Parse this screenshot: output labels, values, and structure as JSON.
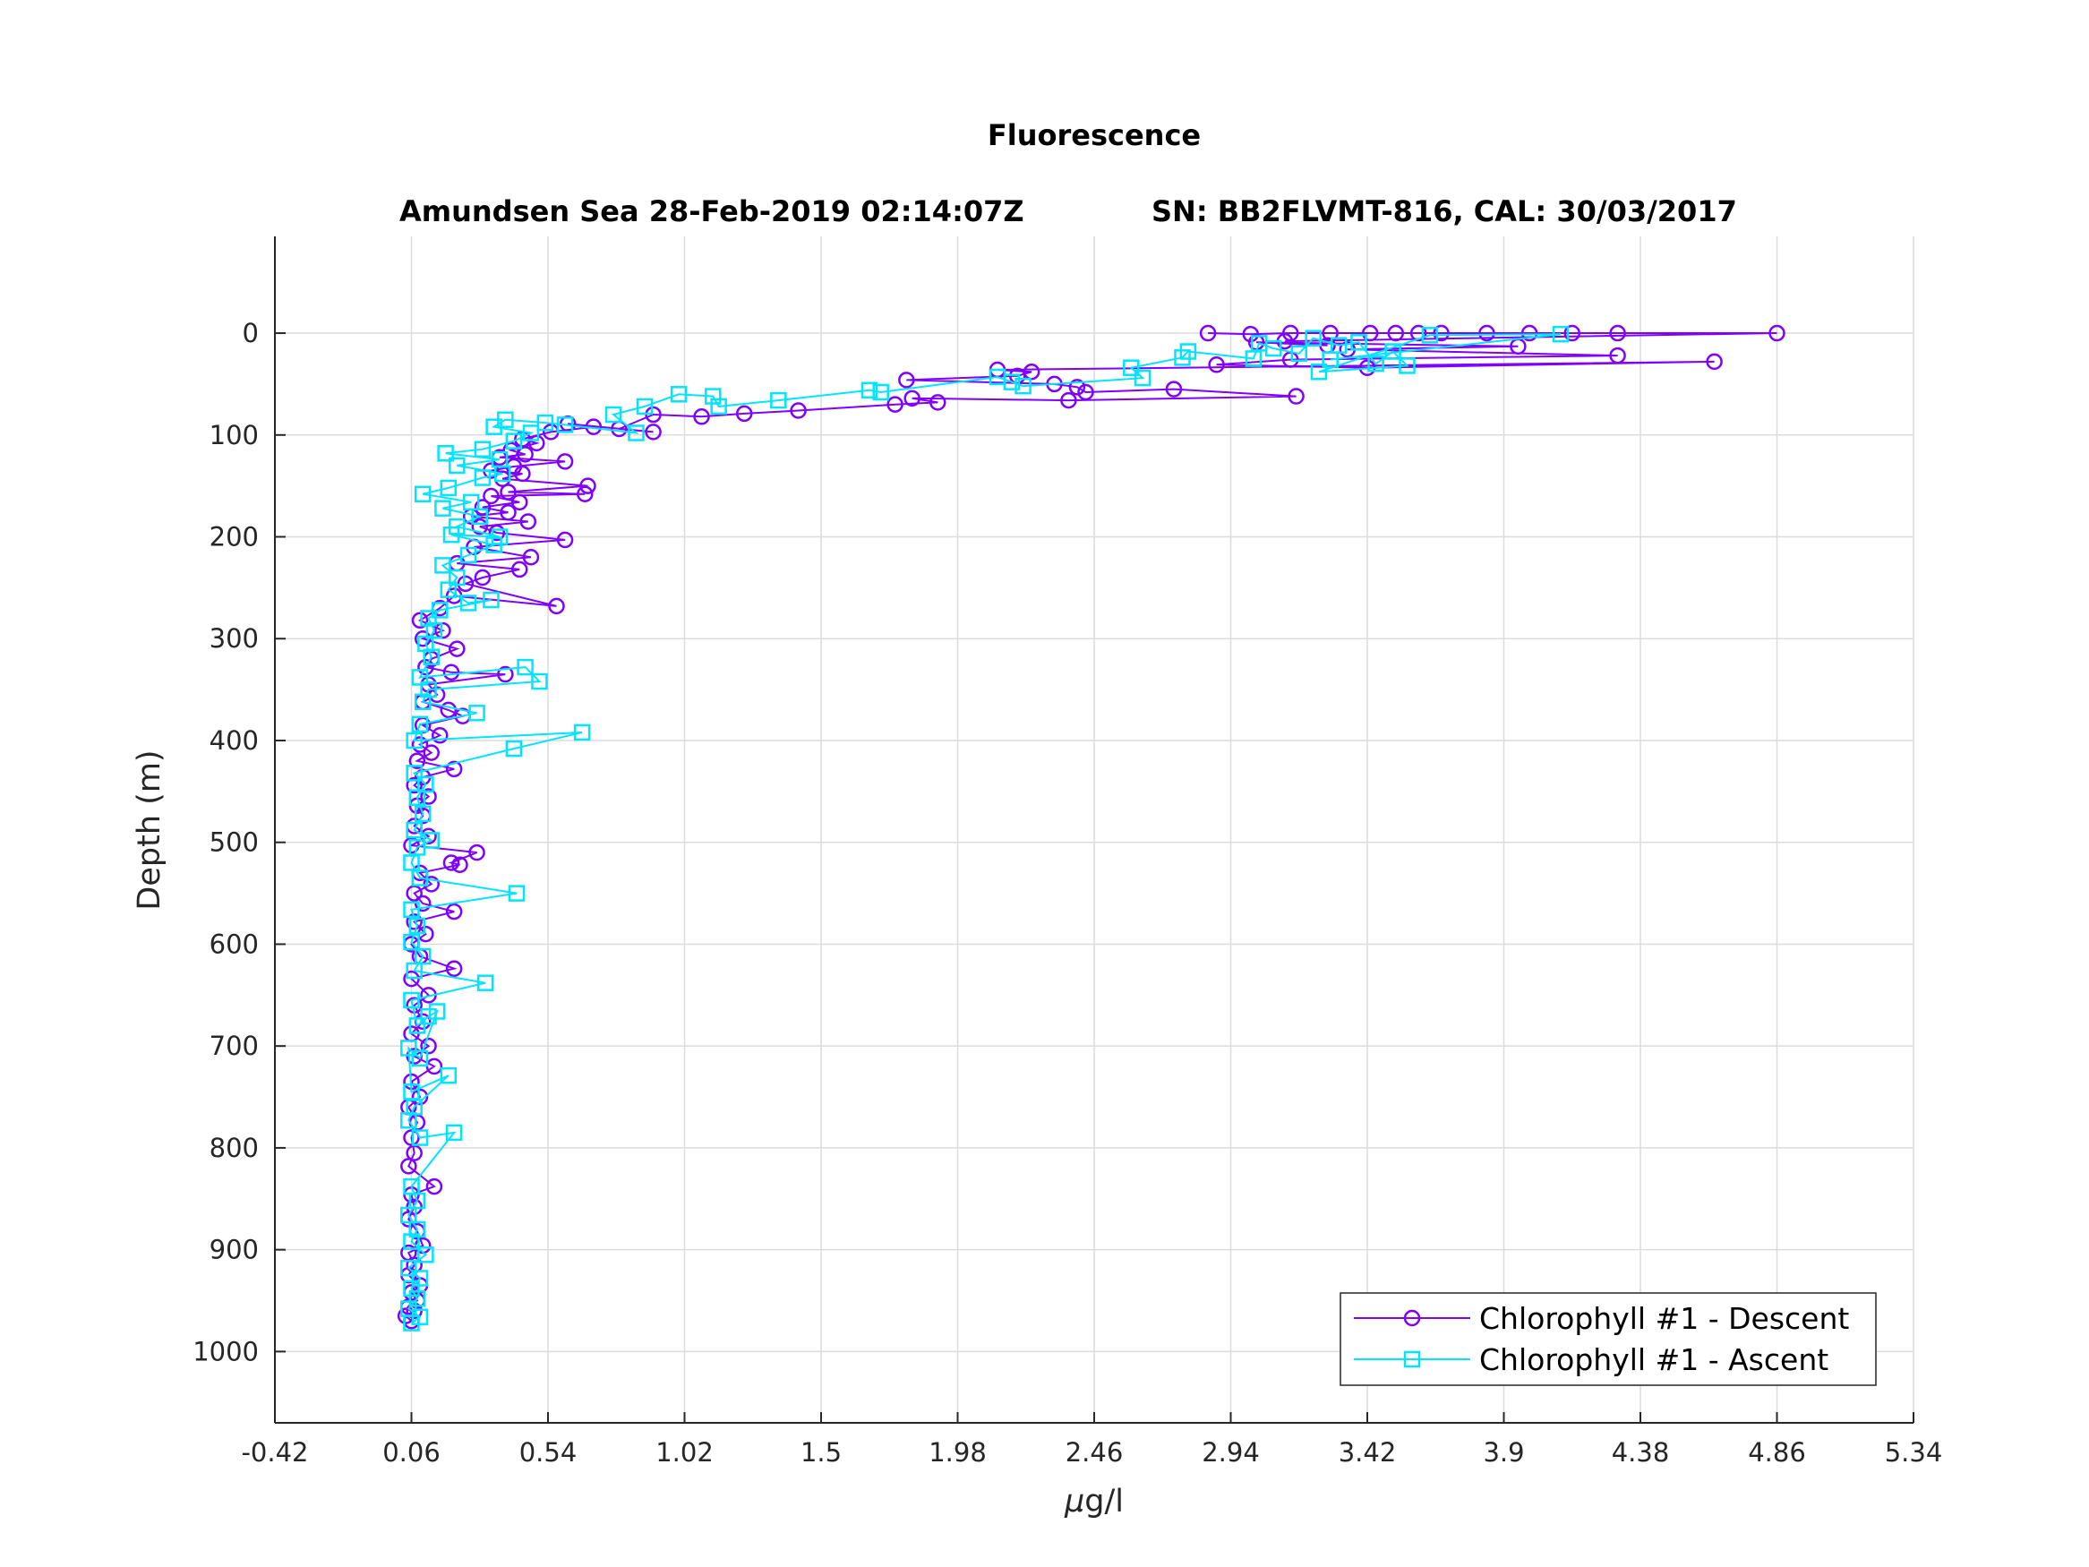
{
  "chart_data": {
    "type": "line",
    "title": "Fluorescence",
    "subtitle_left": "Amundsen Sea 28-Feb-2019 02:14:07Z",
    "subtitle_right": "SN: BB2FLVMT-816, CAL: 30/03/2017",
    "xlabel_mu": "μ",
    "xlabel_rest": "g/l",
    "ylabel": "Depth (m)",
    "xlim": [
      -0.42,
      5.34
    ],
    "ylim": [
      -95,
      1070
    ],
    "y_reversed": true,
    "grid": true,
    "legend_position": "bottom-right",
    "xticks": [
      "-0.42",
      "0.06",
      "0.54",
      "1.02",
      "1.5",
      "1.98",
      "2.46",
      "2.94",
      "3.42",
      "3.9",
      "4.38",
      "4.86",
      "5.34"
    ],
    "yticks": [
      "0",
      "100",
      "200",
      "300",
      "400",
      "500",
      "600",
      "700",
      "800",
      "900",
      "1000"
    ],
    "series": [
      {
        "name": "Chlorophyll #1 - Descent",
        "color": "#7f00ff",
        "marker": "circle",
        "points": [
          [
            2.86,
            0
          ],
          [
            3.01,
            1
          ],
          [
            3.15,
            0
          ],
          [
            3.29,
            0
          ],
          [
            3.43,
            0
          ],
          [
            3.52,
            0
          ],
          [
            3.6,
            0
          ],
          [
            3.68,
            0
          ],
          [
            3.84,
            0
          ],
          [
            3.99,
            0
          ],
          [
            4.14,
            0
          ],
          [
            4.3,
            0
          ],
          [
            4.86,
            0
          ],
          [
            3.13,
            8
          ],
          [
            3.28,
            12
          ],
          [
            3.03,
            9
          ],
          [
            3.95,
            13
          ],
          [
            3.35,
            16
          ],
          [
            4.3,
            22
          ],
          [
            3.15,
            26
          ],
          [
            2.89,
            31
          ],
          [
            3.42,
            34
          ],
          [
            4.64,
            28
          ],
          [
            2.12,
            36
          ],
          [
            2.24,
            38
          ],
          [
            2.19,
            42
          ],
          [
            1.8,
            46
          ],
          [
            2.32,
            50
          ],
          [
            2.4,
            53
          ],
          [
            2.43,
            58
          ],
          [
            2.74,
            55
          ],
          [
            3.17,
            62
          ],
          [
            2.37,
            66
          ],
          [
            1.82,
            64
          ],
          [
            1.91,
            68
          ],
          [
            1.76,
            70
          ],
          [
            1.42,
            76
          ],
          [
            1.23,
            79
          ],
          [
            1.08,
            82
          ],
          [
            0.91,
            80
          ],
          [
            0.79,
            94
          ],
          [
            0.91,
            97
          ],
          [
            0.61,
            89
          ],
          [
            0.7,
            92
          ],
          [
            0.55,
            97
          ],
          [
            0.45,
            104
          ],
          [
            0.5,
            108
          ],
          [
            0.41,
            115
          ],
          [
            0.46,
            119
          ],
          [
            0.37,
            122
          ],
          [
            0.6,
            126
          ],
          [
            0.42,
            131
          ],
          [
            0.34,
            135
          ],
          [
            0.45,
            138
          ],
          [
            0.38,
            143
          ],
          [
            0.68,
            150
          ],
          [
            0.4,
            156
          ],
          [
            0.67,
            158
          ],
          [
            0.34,
            160
          ],
          [
            0.44,
            166
          ],
          [
            0.31,
            171
          ],
          [
            0.4,
            176
          ],
          [
            0.27,
            180
          ],
          [
            0.47,
            185
          ],
          [
            0.3,
            190
          ],
          [
            0.36,
            196
          ],
          [
            0.6,
            203
          ],
          [
            0.28,
            210
          ],
          [
            0.48,
            220
          ],
          [
            0.22,
            226
          ],
          [
            0.44,
            232
          ],
          [
            0.31,
            240
          ],
          [
            0.25,
            246
          ],
          [
            0.57,
            268
          ],
          [
            0.21,
            258
          ],
          [
            0.16,
            270
          ],
          [
            0.09,
            282
          ],
          [
            0.17,
            292
          ],
          [
            0.1,
            300
          ],
          [
            0.22,
            310
          ],
          [
            0.13,
            320
          ],
          [
            0.11,
            328
          ],
          [
            0.2,
            333
          ],
          [
            0.39,
            335
          ],
          [
            0.12,
            345
          ],
          [
            0.15,
            355
          ],
          [
            0.1,
            362
          ],
          [
            0.19,
            370
          ],
          [
            0.24,
            376
          ],
          [
            0.1,
            385
          ],
          [
            0.16,
            395
          ],
          [
            0.09,
            404
          ],
          [
            0.13,
            412
          ],
          [
            0.08,
            420
          ],
          [
            0.21,
            428
          ],
          [
            0.1,
            436
          ],
          [
            0.07,
            444
          ],
          [
            0.12,
            455
          ],
          [
            0.08,
            464
          ],
          [
            0.1,
            474
          ],
          [
            0.07,
            484
          ],
          [
            0.12,
            494
          ],
          [
            0.06,
            503
          ],
          [
            0.29,
            510
          ],
          [
            0.2,
            520
          ],
          [
            0.23,
            522
          ],
          [
            0.09,
            530
          ],
          [
            0.13,
            541
          ],
          [
            0.07,
            550
          ],
          [
            0.1,
            560
          ],
          [
            0.21,
            568
          ],
          [
            0.07,
            578
          ],
          [
            0.11,
            590
          ],
          [
            0.06,
            600
          ],
          [
            0.09,
            612
          ],
          [
            0.21,
            624
          ],
          [
            0.06,
            634
          ],
          [
            0.12,
            650
          ],
          [
            0.07,
            660
          ],
          [
            0.1,
            676
          ],
          [
            0.06,
            688
          ],
          [
            0.12,
            700
          ],
          [
            0.07,
            710
          ],
          [
            0.14,
            720
          ],
          [
            0.06,
            735
          ],
          [
            0.09,
            750
          ],
          [
            0.05,
            760
          ],
          [
            0.08,
            775
          ],
          [
            0.06,
            790
          ],
          [
            0.07,
            805
          ],
          [
            0.05,
            818
          ],
          [
            0.14,
            838
          ],
          [
            0.06,
            846
          ],
          [
            0.07,
            858
          ],
          [
            0.05,
            870
          ],
          [
            0.08,
            882
          ],
          [
            0.1,
            896
          ],
          [
            0.05,
            903
          ],
          [
            0.07,
            915
          ],
          [
            0.05,
            925
          ],
          [
            0.09,
            935
          ],
          [
            0.06,
            942
          ],
          [
            0.08,
            950
          ],
          [
            0.05,
            956
          ],
          [
            0.07,
            960
          ],
          [
            0.04,
            965
          ],
          [
            0.06,
            970
          ]
        ]
      },
      {
        "name": "Chlorophyll #1 - Ascent",
        "color": "#00e5ff",
        "marker": "square",
        "points": [
          [
            0.06,
            972
          ],
          [
            0.09,
            966
          ],
          [
            0.05,
            958
          ],
          [
            0.08,
            948
          ],
          [
            0.06,
            938
          ],
          [
            0.09,
            928
          ],
          [
            0.05,
            918
          ],
          [
            0.11,
            905
          ],
          [
            0.06,
            892
          ],
          [
            0.08,
            880
          ],
          [
            0.05,
            866
          ],
          [
            0.08,
            852
          ],
          [
            0.06,
            838
          ],
          [
            0.21,
            785
          ],
          [
            0.09,
            790
          ],
          [
            0.05,
            773
          ],
          [
            0.07,
            760
          ],
          [
            0.19,
            729
          ],
          [
            0.06,
            745
          ],
          [
            0.05,
            702
          ],
          [
            0.09,
            712
          ],
          [
            0.15,
            666
          ],
          [
            0.12,
            671
          ],
          [
            0.08,
            680
          ],
          [
            0.06,
            655
          ],
          [
            0.32,
            638
          ],
          [
            0.07,
            626
          ],
          [
            0.1,
            612
          ],
          [
            0.06,
            598
          ],
          [
            0.08,
            582
          ],
          [
            0.06,
            566
          ],
          [
            0.43,
            550
          ],
          [
            0.09,
            535
          ],
          [
            0.06,
            520
          ],
          [
            0.08,
            505
          ],
          [
            0.13,
            498
          ],
          [
            0.07,
            488
          ],
          [
            0.1,
            472
          ],
          [
            0.08,
            456
          ],
          [
            0.11,
            443
          ],
          [
            0.07,
            432
          ],
          [
            0.42,
            408
          ],
          [
            0.66,
            392
          ],
          [
            0.07,
            400
          ],
          [
            0.09,
            384
          ],
          [
            0.29,
            373
          ],
          [
            0.1,
            362
          ],
          [
            0.12,
            350
          ],
          [
            0.51,
            342
          ],
          [
            0.46,
            328
          ],
          [
            0.09,
            338
          ],
          [
            0.13,
            318
          ],
          [
            0.11,
            305
          ],
          [
            0.14,
            292
          ],
          [
            0.12,
            280
          ],
          [
            0.16,
            272
          ],
          [
            0.34,
            262
          ],
          [
            0.26,
            265
          ],
          [
            0.19,
            252
          ],
          [
            0.22,
            240
          ],
          [
            0.17,
            228
          ],
          [
            0.26,
            218
          ],
          [
            0.35,
            208
          ],
          [
            0.2,
            198
          ],
          [
            0.37,
            200
          ],
          [
            0.22,
            190
          ],
          [
            0.3,
            180
          ],
          [
            0.17,
            172
          ],
          [
            0.27,
            166
          ],
          [
            0.1,
            158
          ],
          [
            0.19,
            152
          ],
          [
            0.31,
            142
          ],
          [
            0.38,
            138
          ],
          [
            0.22,
            130
          ],
          [
            0.37,
            124
          ],
          [
            0.18,
            118
          ],
          [
            0.31,
            114
          ],
          [
            0.42,
            106
          ],
          [
            0.48,
            98
          ],
          [
            0.35,
            92
          ],
          [
            0.39,
            85
          ],
          [
            0.53,
            88
          ],
          [
            0.6,
            90
          ],
          [
            0.85,
            98
          ],
          [
            0.77,
            80
          ],
          [
            0.88,
            72
          ],
          [
            1.0,
            60
          ],
          [
            1.12,
            62
          ],
          [
            1.14,
            72
          ],
          [
            1.35,
            66
          ],
          [
            1.67,
            56
          ],
          [
            1.71,
            58
          ],
          [
            2.12,
            43
          ],
          [
            2.17,
            48
          ],
          [
            2.21,
            52
          ],
          [
            2.63,
            44
          ],
          [
            2.59,
            34
          ],
          [
            2.77,
            24
          ],
          [
            2.79,
            18
          ],
          [
            3.02,
            25
          ],
          [
            3.04,
            10
          ],
          [
            3.09,
            15
          ],
          [
            3.18,
            20
          ],
          [
            3.23,
            5
          ],
          [
            3.32,
            12
          ],
          [
            3.39,
            9
          ],
          [
            3.45,
            30
          ],
          [
            3.51,
            18
          ],
          [
            3.56,
            32
          ],
          [
            3.25,
            38
          ],
          [
            3.64,
            2
          ],
          [
            4.1,
            1
          ],
          [
            3.29,
            26
          ]
        ]
      }
    ]
  }
}
